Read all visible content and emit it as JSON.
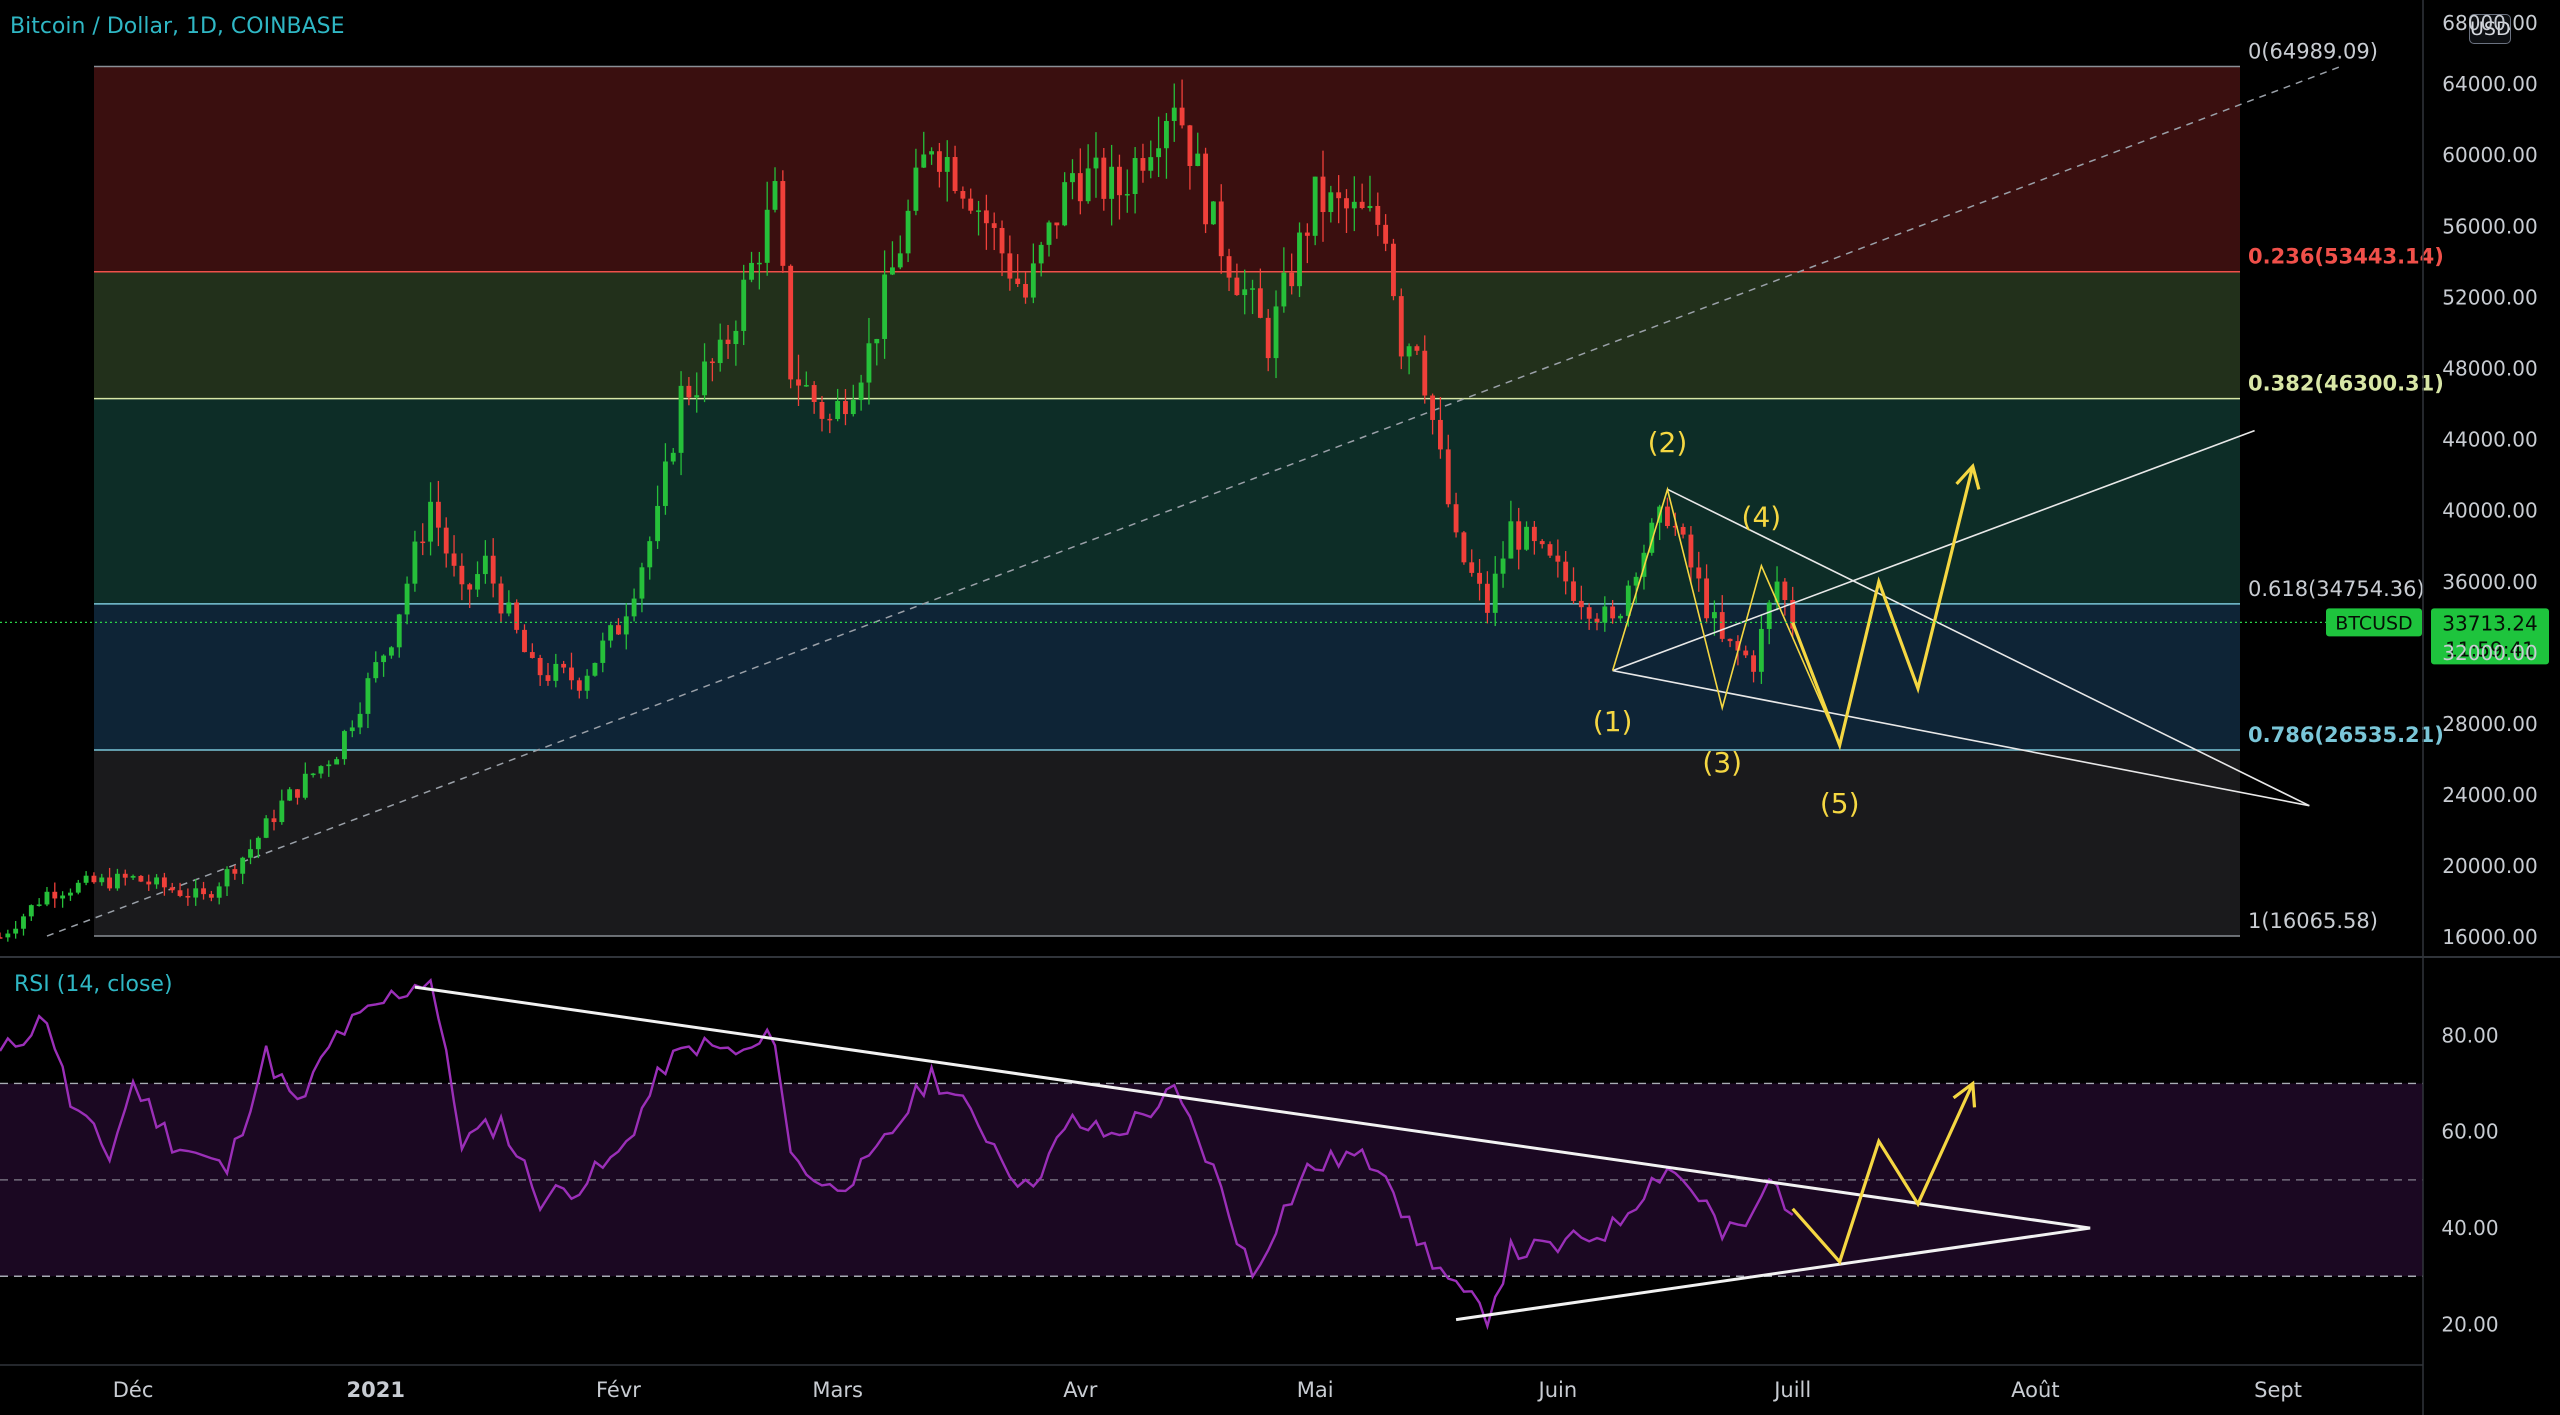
{
  "header": {
    "title": "Bitcoin / Dollar, 1D, COINBASE",
    "currency_button": "USD"
  },
  "colors": {
    "up": "#26c03a",
    "down": "#f0403a",
    "fib_236": "#f0504a",
    "fib_382": "#d8e6a6",
    "fib_618": "#7ac6d8",
    "fib_786": "#7ac6d8",
    "wave": "#f5d742",
    "rsi": "#9b2fb8",
    "price_badge": "#1ec43d"
  },
  "price_badge": {
    "symbol": "BTCUSD",
    "price": "33713.24",
    "countdown": "11:59:41"
  },
  "chart_data": [
    {
      "type": "candlestick",
      "title": "Bitcoin / Dollar, 1D, COINBASE",
      "y_axis_ticks": [
        "16000.00",
        "20000.00",
        "24000.00",
        "28000.00",
        "32000.00",
        "36000.00",
        "40000.00",
        "44000.00",
        "48000.00",
        "52000.00",
        "56000.00",
        "60000.00",
        "64000.00"
      ],
      "ylim": [
        15000,
        68000
      ],
      "x_axis_labels": [
        {
          "label": "Déc",
          "date": "2020-12-01"
        },
        {
          "label": "2021",
          "date": "2021-01-01"
        },
        {
          "label": "Févr",
          "date": "2021-02-01"
        },
        {
          "label": "Mars",
          "date": "2021-03-01"
        },
        {
          "label": "Avr",
          "date": "2021-04-01"
        },
        {
          "label": "Mai",
          "date": "2021-05-01"
        },
        {
          "label": "Juin",
          "date": "2021-06-01"
        },
        {
          "label": "Juill",
          "date": "2021-07-01"
        },
        {
          "label": "Août",
          "date": "2021-08-01"
        },
        {
          "label": "Sept",
          "date": "2021-09-01"
        }
      ],
      "xlim": [
        "2020-11-14",
        "2021-09-13"
      ],
      "close_path": [
        [
          "2020-11-14",
          16000
        ],
        [
          "2020-11-20",
          18500
        ],
        [
          "2020-11-25",
          19000
        ],
        [
          "2020-12-01",
          19300
        ],
        [
          "2020-12-10",
          18200
        ],
        [
          "2020-12-16",
          21000
        ],
        [
          "2020-12-20",
          23500
        ],
        [
          "2020-12-27",
          26500
        ],
        [
          "2021-01-03",
          33000
        ],
        [
          "2021-01-08",
          40500
        ],
        [
          "2021-01-12",
          35000
        ],
        [
          "2021-01-15",
          37000
        ],
        [
          "2021-01-21",
          31000
        ],
        [
          "2021-01-27",
          30500
        ],
        [
          "2021-02-01",
          33500
        ],
        [
          "2021-02-06",
          39500
        ],
        [
          "2021-02-09",
          46500
        ],
        [
          "2021-02-14",
          48500
        ],
        [
          "2021-02-21",
          57500
        ],
        [
          "2021-02-23",
          48000
        ],
        [
          "2021-02-28",
          45000
        ],
        [
          "2021-03-05",
          49000
        ],
        [
          "2021-03-13",
          61000
        ],
        [
          "2021-03-18",
          58000
        ],
        [
          "2021-03-25",
          52000
        ],
        [
          "2021-03-31",
          59000
        ],
        [
          "2021-04-06",
          58000
        ],
        [
          "2021-04-13",
          63500
        ],
        [
          "2021-04-18",
          56000
        ],
        [
          "2021-04-25",
          49500
        ],
        [
          "2021-05-01",
          57500
        ],
        [
          "2021-05-10",
          56000
        ],
        [
          "2021-05-12",
          49500
        ],
        [
          "2021-05-14",
          49800
        ],
        [
          "2021-05-19",
          38000
        ],
        [
          "2021-05-23",
          34500
        ],
        [
          "2021-05-26",
          39000
        ],
        [
          "2021-06-01",
          36500
        ],
        [
          "2021-06-08",
          33500
        ],
        [
          "2021-06-11",
          37200
        ],
        [
          "2021-06-15",
          40000
        ],
        [
          "2021-06-22",
          32500
        ],
        [
          "2021-06-26",
          31500
        ],
        [
          "2021-06-29",
          36000
        ],
        [
          "2021-07-01",
          33713
        ]
      ],
      "fibonacci": [
        {
          "ratio": "0",
          "value": 64989.09,
          "label": "0(64989.09)"
        },
        {
          "ratio": "0.236",
          "value": 53443.14,
          "label": "0.236(53443.14)"
        },
        {
          "ratio": "0.382",
          "value": 46300.31,
          "label": "0.382(46300.31)"
        },
        {
          "ratio": "0.618",
          "value": 34754.36,
          "label": "0.618(34754.36)"
        },
        {
          "ratio": "0.786",
          "value": 26535.21,
          "label": "0.786(26535.21)"
        },
        {
          "ratio": "1",
          "value": 16065.58,
          "label": "1(16065.58)"
        }
      ],
      "trendline_dashed": [
        [
          "2020-11-20",
          16065.58
        ],
        [
          "2021-09-09",
          64989.09
        ]
      ],
      "wedge_lines": [
        [
          [
            "2021-06-08",
            31000
          ],
          [
            "2021-08-29",
            44500
          ]
        ],
        [
          [
            "2021-06-08",
            31000
          ],
          [
            "2021-09-05",
            23400
          ]
        ],
        [
          [
            "2021-06-15",
            41200
          ],
          [
            "2021-09-05",
            23400
          ]
        ]
      ],
      "wave_labels": [
        {
          "label": "(1)",
          "date": "2021-06-08",
          "value": 27600
        },
        {
          "label": "(2)",
          "date": "2021-06-15",
          "value": 43300
        },
        {
          "label": "(3)",
          "date": "2021-06-22",
          "value": 25300
        },
        {
          "label": "(4)",
          "date": "2021-06-27",
          "value": 39100
        },
        {
          "label": "(5)",
          "date": "2021-07-07",
          "value": 23000
        }
      ],
      "wave_path_thin": [
        [
          "2021-06-08",
          31000
        ],
        [
          "2021-06-15",
          41200
        ],
        [
          "2021-06-22",
          28900
        ],
        [
          "2021-06-27",
          36900
        ],
        [
          "2021-07-07",
          26800
        ]
      ],
      "projection_path": [
        [
          "2021-07-01",
          33700
        ],
        [
          "2021-07-07",
          26800
        ],
        [
          "2021-07-12",
          36000
        ],
        [
          "2021-07-17",
          30000
        ],
        [
          "2021-07-24",
          42500
        ]
      ]
    },
    {
      "type": "line",
      "title": "RSI (14, close)",
      "y_axis_ticks": [
        "20.00",
        "40.00",
        "60.00",
        "80.00"
      ],
      "ylim": [
        12,
        95
      ],
      "bands": [
        70,
        50,
        30
      ],
      "rsi_path": [
        [
          "2020-11-14",
          76
        ],
        [
          "2020-11-20",
          84
        ],
        [
          "2020-11-23",
          66
        ],
        [
          "2020-11-28",
          55
        ],
        [
          "2020-12-01",
          70
        ],
        [
          "2020-12-06",
          58
        ],
        [
          "2020-12-13",
          52
        ],
        [
          "2020-12-18",
          76
        ],
        [
          "2020-12-22",
          65
        ],
        [
          "2020-12-27",
          80
        ],
        [
          "2021-01-03",
          88
        ],
        [
          "2021-01-08",
          92
        ],
        [
          "2021-01-12",
          58
        ],
        [
          "2021-01-17",
          62
        ],
        [
          "2021-01-22",
          46
        ],
        [
          "2021-01-27",
          49
        ],
        [
          "2021-02-01",
          55
        ],
        [
          "2021-02-07",
          74
        ],
        [
          "2021-02-11",
          78
        ],
        [
          "2021-02-17",
          76
        ],
        [
          "2021-02-21",
          80
        ],
        [
          "2021-02-23",
          55
        ],
        [
          "2021-02-28",
          48
        ],
        [
          "2021-03-05",
          53
        ],
        [
          "2021-03-13",
          72
        ],
        [
          "2021-03-19",
          62
        ],
        [
          "2021-03-25",
          48
        ],
        [
          "2021-03-31",
          62
        ],
        [
          "2021-04-05",
          59
        ],
        [
          "2021-04-13",
          68
        ],
        [
          "2021-04-18",
          52
        ],
        [
          "2021-04-23",
          30
        ],
        [
          "2021-04-26",
          41
        ],
        [
          "2021-04-30",
          52
        ],
        [
          "2021-05-05",
          55
        ],
        [
          "2021-05-10",
          53
        ],
        [
          "2021-05-13",
          40
        ],
        [
          "2021-05-19",
          27
        ],
        [
          "2021-05-23",
          22
        ],
        [
          "2021-05-26",
          35
        ],
        [
          "2021-06-01",
          36
        ],
        [
          "2021-06-08",
          40
        ],
        [
          "2021-06-12",
          48
        ],
        [
          "2021-06-15",
          53
        ],
        [
          "2021-06-20",
          45
        ],
        [
          "2021-06-22",
          38
        ],
        [
          "2021-06-26",
          42
        ],
        [
          "2021-06-28",
          50
        ],
        [
          "2021-07-01",
          44
        ]
      ],
      "trendlines": [
        [
          [
            "2021-01-06",
            90
          ],
          [
            "2021-08-08",
            40
          ]
        ],
        [
          [
            "2021-05-19",
            21
          ],
          [
            "2021-08-08",
            40
          ]
        ]
      ],
      "projection_path": [
        [
          "2021-07-01",
          44
        ],
        [
          "2021-07-07",
          33
        ],
        [
          "2021-07-12",
          58
        ],
        [
          "2021-07-17",
          45
        ],
        [
          "2021-07-24",
          70
        ]
      ]
    }
  ]
}
